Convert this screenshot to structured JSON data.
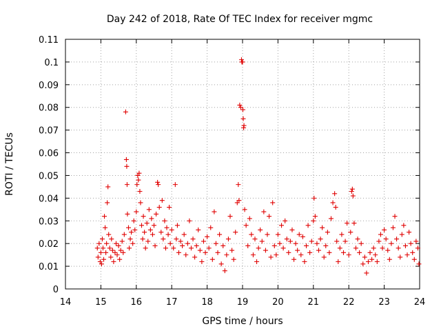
{
  "chart_data": {
    "type": "scatter",
    "title": "Day 242 of 2018, Rate Of TEC Index for receiver mgmc",
    "xlabel": "GPS time / hours",
    "ylabel": "ROTI / TECUs",
    "xlim": [
      14,
      24
    ],
    "ylim": [
      0,
      0.11
    ],
    "x_ticks": [
      "14",
      "15",
      "16",
      "17",
      "18",
      "19",
      "20",
      "21",
      "22",
      "23",
      "24"
    ],
    "y_ticks": [
      "0",
      "0.01",
      "0.02",
      "0.03",
      "0.04",
      "0.05",
      "0.06",
      "0.07",
      "0.08",
      "0.09",
      "0.1",
      "0.11"
    ],
    "grid": true,
    "marker": "plus",
    "color": "#e00000",
    "series": [
      {
        "name": "",
        "points": [
          [
            14.9,
            0.018
          ],
          [
            14.92,
            0.014
          ],
          [
            14.95,
            0.02
          ],
          [
            14.98,
            0.012
          ],
          [
            15.0,
            0.016
          ],
          [
            15.02,
            0.011
          ],
          [
            15.04,
            0.022
          ],
          [
            15.06,
            0.018
          ],
          [
            15.08,
            0.013
          ],
          [
            15.1,
            0.032
          ],
          [
            15.12,
            0.027
          ],
          [
            15.14,
            0.016
          ],
          [
            15.16,
            0.02
          ],
          [
            15.18,
            0.038
          ],
          [
            15.2,
            0.045
          ],
          [
            15.22,
            0.024
          ],
          [
            15.25,
            0.018
          ],
          [
            15.28,
            0.014
          ],
          [
            15.3,
            0.022
          ],
          [
            15.33,
            0.017
          ],
          [
            15.36,
            0.012
          ],
          [
            15.4,
            0.016
          ],
          [
            15.43,
            0.02
          ],
          [
            15.46,
            0.015
          ],
          [
            15.5,
            0.019
          ],
          [
            15.53,
            0.013
          ],
          [
            15.56,
            0.017
          ],
          [
            15.6,
            0.021
          ],
          [
            15.63,
            0.016
          ],
          [
            15.66,
            0.024
          ],
          [
            15.7,
            0.078
          ],
          [
            15.72,
            0.057
          ],
          [
            15.73,
            0.054
          ],
          [
            15.74,
            0.046
          ],
          [
            15.75,
            0.033
          ],
          [
            15.78,
            0.027
          ],
          [
            15.8,
            0.018
          ],
          [
            15.83,
            0.022
          ],
          [
            15.86,
            0.025
          ],
          [
            15.9,
            0.02
          ],
          [
            15.93,
            0.03
          ],
          [
            15.96,
            0.026
          ],
          [
            16.0,
            0.034
          ],
          [
            16.02,
            0.046
          ],
          [
            16.04,
            0.05
          ],
          [
            16.06,
            0.048
          ],
          [
            16.08,
            0.051
          ],
          [
            16.1,
            0.043
          ],
          [
            16.12,
            0.038
          ],
          [
            16.15,
            0.028
          ],
          [
            16.18,
            0.022
          ],
          [
            16.2,
            0.032
          ],
          [
            16.23,
            0.025
          ],
          [
            16.26,
            0.018
          ],
          [
            16.3,
            0.029
          ],
          [
            16.33,
            0.021
          ],
          [
            16.36,
            0.035
          ],
          [
            16.4,
            0.026
          ],
          [
            16.43,
            0.031
          ],
          [
            16.46,
            0.024
          ],
          [
            16.5,
            0.028
          ],
          [
            16.53,
            0.019
          ],
          [
            16.56,
            0.033
          ],
          [
            16.6,
            0.047
          ],
          [
            16.62,
            0.046
          ],
          [
            16.65,
            0.036
          ],
          [
            16.7,
            0.025
          ],
          [
            16.73,
            0.039
          ],
          [
            16.76,
            0.022
          ],
          [
            16.8,
            0.03
          ],
          [
            16.83,
            0.018
          ],
          [
            16.86,
            0.027
          ],
          [
            16.9,
            0.024
          ],
          [
            16.93,
            0.036
          ],
          [
            16.96,
            0.02
          ],
          [
            17.0,
            0.026
          ],
          [
            17.05,
            0.018
          ],
          [
            17.1,
            0.046
          ],
          [
            17.13,
            0.022
          ],
          [
            17.16,
            0.028
          ],
          [
            17.2,
            0.016
          ],
          [
            17.25,
            0.021
          ],
          [
            17.3,
            0.019
          ],
          [
            17.35,
            0.024
          ],
          [
            17.4,
            0.015
          ],
          [
            17.45,
            0.02
          ],
          [
            17.5,
            0.03
          ],
          [
            17.55,
            0.018
          ],
          [
            17.6,
            0.022
          ],
          [
            17.65,
            0.014
          ],
          [
            17.7,
            0.019
          ],
          [
            17.75,
            0.026
          ],
          [
            17.8,
            0.017
          ],
          [
            17.85,
            0.012
          ],
          [
            17.9,
            0.021
          ],
          [
            17.95,
            0.016
          ],
          [
            18.0,
            0.023
          ],
          [
            18.05,
            0.018
          ],
          [
            18.1,
            0.027
          ],
          [
            18.15,
            0.013
          ],
          [
            18.2,
            0.034
          ],
          [
            18.25,
            0.02
          ],
          [
            18.3,
            0.016
          ],
          [
            18.35,
            0.024
          ],
          [
            18.4,
            0.011
          ],
          [
            18.45,
            0.019
          ],
          [
            18.5,
            0.008
          ],
          [
            18.55,
            0.015
          ],
          [
            18.6,
            0.022
          ],
          [
            18.65,
            0.032
          ],
          [
            18.7,
            0.017
          ],
          [
            18.75,
            0.013
          ],
          [
            18.8,
            0.025
          ],
          [
            18.85,
            0.038
          ],
          [
            18.88,
            0.046
          ],
          [
            18.9,
            0.039
          ],
          [
            18.92,
            0.081
          ],
          [
            18.95,
            0.08
          ],
          [
            18.97,
            0.101
          ],
          [
            18.98,
            0.1
          ],
          [
            19.0,
            0.1
          ],
          [
            19.01,
            0.079
          ],
          [
            19.02,
            0.075
          ],
          [
            19.03,
            0.071
          ],
          [
            19.04,
            0.072
          ],
          [
            19.06,
            0.035
          ],
          [
            19.1,
            0.028
          ],
          [
            19.15,
            0.019
          ],
          [
            19.2,
            0.031
          ],
          [
            19.25,
            0.024
          ],
          [
            19.3,
            0.015
          ],
          [
            19.35,
            0.022
          ],
          [
            19.4,
            0.012
          ],
          [
            19.45,
            0.018
          ],
          [
            19.5,
            0.026
          ],
          [
            19.55,
            0.021
          ],
          [
            19.6,
            0.034
          ],
          [
            19.65,
            0.017
          ],
          [
            19.7,
            0.024
          ],
          [
            19.75,
            0.032
          ],
          [
            19.8,
            0.014
          ],
          [
            19.85,
            0.038
          ],
          [
            19.9,
            0.019
          ],
          [
            19.95,
            0.015
          ],
          [
            20.0,
            0.024
          ],
          [
            20.05,
            0.02
          ],
          [
            20.1,
            0.028
          ],
          [
            20.15,
            0.018
          ],
          [
            20.2,
            0.03
          ],
          [
            20.25,
            0.022
          ],
          [
            20.3,
            0.016
          ],
          [
            20.35,
            0.021
          ],
          [
            20.4,
            0.026
          ],
          [
            20.45,
            0.013
          ],
          [
            20.5,
            0.02
          ],
          [
            20.55,
            0.017
          ],
          [
            20.6,
            0.024
          ],
          [
            20.65,
            0.015
          ],
          [
            20.7,
            0.023
          ],
          [
            20.75,
            0.012
          ],
          [
            20.8,
            0.019
          ],
          [
            20.85,
            0.028
          ],
          [
            20.9,
            0.016
          ],
          [
            20.95,
            0.021
          ],
          [
            21.0,
            0.03
          ],
          [
            21.02,
            0.04
          ],
          [
            21.05,
            0.032
          ],
          [
            21.1,
            0.02
          ],
          [
            21.15,
            0.017
          ],
          [
            21.2,
            0.022
          ],
          [
            21.25,
            0.027
          ],
          [
            21.3,
            0.014
          ],
          [
            21.35,
            0.019
          ],
          [
            21.4,
            0.025
          ],
          [
            21.45,
            0.016
          ],
          [
            21.5,
            0.031
          ],
          [
            21.55,
            0.038
          ],
          [
            21.6,
            0.042
          ],
          [
            21.63,
            0.036
          ],
          [
            21.66,
            0.021
          ],
          [
            21.7,
            0.012
          ],
          [
            21.75,
            0.018
          ],
          [
            21.8,
            0.024
          ],
          [
            21.85,
            0.016
          ],
          [
            21.9,
            0.021
          ],
          [
            21.95,
            0.029
          ],
          [
            22.0,
            0.015
          ],
          [
            22.05,
            0.025
          ],
          [
            22.08,
            0.043
          ],
          [
            22.1,
            0.044
          ],
          [
            22.12,
            0.041
          ],
          [
            22.15,
            0.029
          ],
          [
            22.2,
            0.018
          ],
          [
            22.25,
            0.022
          ],
          [
            22.3,
            0.016
          ],
          [
            22.35,
            0.02
          ],
          [
            22.4,
            0.011
          ],
          [
            22.45,
            0.014
          ],
          [
            22.5,
            0.007
          ],
          [
            22.55,
            0.012
          ],
          [
            22.6,
            0.016
          ],
          [
            22.65,
            0.013
          ],
          [
            22.7,
            0.018
          ],
          [
            22.75,
            0.015
          ],
          [
            22.8,
            0.012
          ],
          [
            22.85,
            0.021
          ],
          [
            22.9,
            0.024
          ],
          [
            22.95,
            0.018
          ],
          [
            23.0,
            0.026
          ],
          [
            23.05,
            0.022
          ],
          [
            23.1,
            0.017
          ],
          [
            23.15,
            0.013
          ],
          [
            23.2,
            0.02
          ],
          [
            23.25,
            0.027
          ],
          [
            23.3,
            0.032
          ],
          [
            23.35,
            0.022
          ],
          [
            23.4,
            0.018
          ],
          [
            23.45,
            0.014
          ],
          [
            23.5,
            0.024
          ],
          [
            23.55,
            0.028
          ],
          [
            23.6,
            0.019
          ],
          [
            23.65,
            0.015
          ],
          [
            23.7,
            0.025
          ],
          [
            23.75,
            0.02
          ],
          [
            23.8,
            0.016
          ],
          [
            23.85,
            0.013
          ],
          [
            23.9,
            0.021
          ],
          [
            23.95,
            0.018
          ],
          [
            23.98,
            0.011
          ]
        ]
      }
    ]
  }
}
